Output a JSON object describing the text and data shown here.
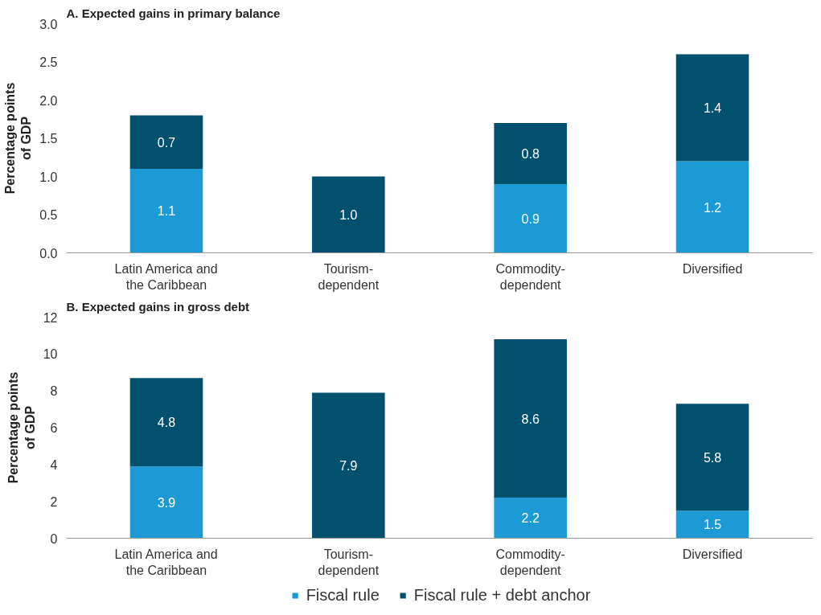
{
  "chart_data": [
    {
      "type": "bar",
      "stacked": true,
      "title": "A. Expected gains in primary balance",
      "ylabel": "Percentage points\nof GDP",
      "categories": [
        "Latin America and\nthe Caribbean",
        "Tourism-\ndependent",
        "Commodity-\ndependent",
        "Diversified"
      ],
      "ylim": [
        0,
        3
      ],
      "yticks": [
        {
          "value": 0,
          "label": "0.0"
        },
        0.5,
        {
          "value": 1,
          "label": "1.0"
        },
        1.5,
        {
          "value": 2,
          "label": "2.0"
        },
        2.5,
        {
          "value": 3,
          "label": "3.0"
        }
      ],
      "grid": false,
      "data_labels": true,
      "series": [
        {
          "color": "#1b9ad6",
          "values": [
            1.1,
            null,
            0.9,
            1.2
          ]
        },
        {
          "color": "#00506e",
          "values": [
            0.7,
            1.0,
            0.8,
            1.4
          ],
          "value_labels": [
            "0.7",
            "1.0",
            "0.8",
            "1.4"
          ]
        }
      ]
    },
    {
      "type": "bar",
      "stacked": true,
      "title": "B. Expected gains in gross debt",
      "ylabel": "Percentage points\nof GDP",
      "categories": [
        "Latin America and\nthe Caribbean",
        "Tourism-\ndependent",
        "Commodity-\ndependent",
        "Diversified"
      ],
      "ylim": [
        0,
        12
      ],
      "yticks": [
        0,
        2,
        4,
        6,
        8,
        10,
        12
      ],
      "grid": false,
      "legend": "bottom",
      "data_labels": true,
      "series": [
        {
          "name": "Fiscal rule",
          "color": "#1b9ad6",
          "values": [
            3.9,
            null,
            2.2,
            1.5
          ]
        },
        {
          "name": "Fiscal rule + debt anchor",
          "color": "#00506e",
          "values": [
            4.8,
            7.9,
            8.6,
            5.8
          ]
        }
      ]
    }
  ]
}
